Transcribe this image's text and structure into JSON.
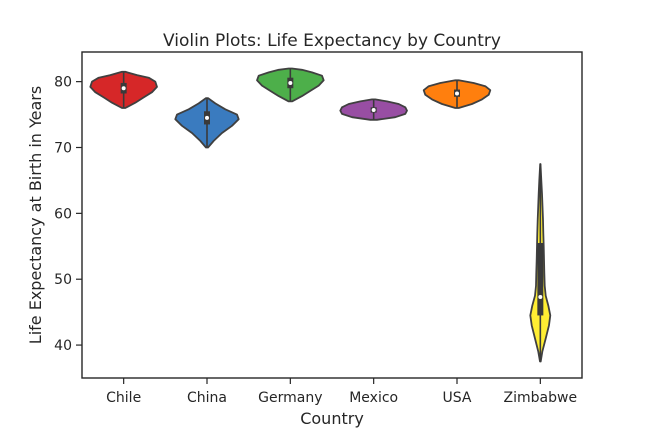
{
  "chart_data": {
    "type": "violin",
    "title": "Violin Plots: Life Expectancy by Country",
    "xlabel": "Country",
    "ylabel": "Life Expectancy at Birth in Years",
    "ylim": [
      35,
      84.5
    ],
    "yticks": [
      40,
      50,
      60,
      70,
      80
    ],
    "grid": false,
    "categories": [
      "Chile",
      "China",
      "Germany",
      "Mexico",
      "USA",
      "Zimbabwe"
    ],
    "series": [
      {
        "category": "Chile",
        "color": "#d62728",
        "min": 76.0,
        "q1": 78.2,
        "median": 79.0,
        "q3": 79.8,
        "max": 81.5,
        "density": [
          [
            76.0,
            0.05
          ],
          [
            76.8,
            0.35
          ],
          [
            77.6,
            0.6
          ],
          [
            78.4,
            0.85
          ],
          [
            79.2,
            1.0
          ],
          [
            80.0,
            0.95
          ],
          [
            80.6,
            0.75
          ],
          [
            81.0,
            0.4
          ],
          [
            81.5,
            0.05
          ]
        ]
      },
      {
        "category": "China",
        "color": "#3a7bbf",
        "min": 70.0,
        "q1": 73.5,
        "median": 74.5,
        "q3": 75.5,
        "max": 77.5,
        "density": [
          [
            70.0,
            0.03
          ],
          [
            71.0,
            0.2
          ],
          [
            72.2,
            0.45
          ],
          [
            73.3,
            0.75
          ],
          [
            74.3,
            0.95
          ],
          [
            75.0,
            0.9
          ],
          [
            75.8,
            0.55
          ],
          [
            76.7,
            0.25
          ],
          [
            77.5,
            0.03
          ]
        ]
      },
      {
        "category": "Germany",
        "color": "#4daf4a",
        "min": 77.0,
        "q1": 79.0,
        "median": 79.8,
        "q3": 80.6,
        "max": 82.0,
        "density": [
          [
            77.0,
            0.05
          ],
          [
            77.8,
            0.35
          ],
          [
            78.6,
            0.6
          ],
          [
            79.4,
            0.85
          ],
          [
            80.2,
            1.0
          ],
          [
            80.9,
            0.95
          ],
          [
            81.4,
            0.65
          ],
          [
            81.8,
            0.35
          ],
          [
            82.0,
            0.05
          ]
        ]
      },
      {
        "category": "Mexico",
        "color": "#984ea3",
        "min": 74.2,
        "q1": 75.3,
        "median": 75.7,
        "q3": 76.1,
        "max": 77.3,
        "density": [
          [
            74.2,
            0.1
          ],
          [
            74.6,
            0.65
          ],
          [
            75.1,
            0.95
          ],
          [
            75.6,
            1.0
          ],
          [
            76.1,
            0.95
          ],
          [
            76.6,
            0.75
          ],
          [
            77.0,
            0.4
          ],
          [
            77.3,
            0.05
          ]
        ]
      },
      {
        "category": "USA",
        "color": "#ff7f0e",
        "min": 76.0,
        "q1": 77.7,
        "median": 78.2,
        "q3": 78.8,
        "max": 80.2,
        "density": [
          [
            76.0,
            0.05
          ],
          [
            76.6,
            0.45
          ],
          [
            77.3,
            0.75
          ],
          [
            78.0,
            0.95
          ],
          [
            78.7,
            1.0
          ],
          [
            79.3,
            0.85
          ],
          [
            79.8,
            0.5
          ],
          [
            80.2,
            0.05
          ]
        ]
      },
      {
        "category": "Zimbabwe",
        "color": "#ffee33",
        "min": 37.5,
        "q1": 44.5,
        "median": 47.3,
        "q3": 55.5,
        "max": 67.5,
        "density": [
          [
            37.5,
            0.01
          ],
          [
            39.0,
            0.06
          ],
          [
            41.0,
            0.16
          ],
          [
            43.0,
            0.26
          ],
          [
            44.5,
            0.3
          ],
          [
            46.0,
            0.24
          ],
          [
            47.5,
            0.16
          ],
          [
            49.0,
            0.13
          ],
          [
            51.0,
            0.12
          ],
          [
            53.0,
            0.11
          ],
          [
            55.0,
            0.1
          ],
          [
            57.0,
            0.09
          ],
          [
            59.0,
            0.08
          ],
          [
            61.0,
            0.065
          ],
          [
            63.0,
            0.05
          ],
          [
            65.0,
            0.03
          ],
          [
            67.5,
            0.005
          ]
        ]
      }
    ]
  }
}
